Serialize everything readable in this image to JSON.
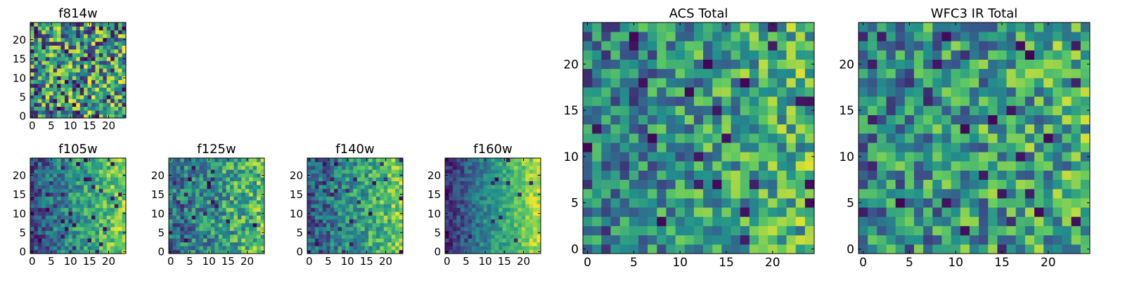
{
  "figure": {
    "colormap": "viridis",
    "colormap_stops": [
      "#440154",
      "#3b528b",
      "#21918c",
      "#5ec962",
      "#fde725"
    ]
  },
  "chart_data": [
    {
      "type": "heatmap",
      "title": "f814w",
      "xlabel": "",
      "ylabel": "",
      "grid_size": 25,
      "xlim": [
        -0.5,
        24.5
      ],
      "ylim": [
        -0.5,
        24.5
      ],
      "xticks": [
        0,
        5,
        10,
        15,
        20
      ],
      "yticks": [
        0,
        5,
        10,
        15,
        20
      ],
      "grid": false,
      "colormap": "viridis",
      "description_of_values": "noisy pixel map, slightly brighter toward the right",
      "seed": 11,
      "pattern": {
        "gradient_x": 0.1,
        "noise": 0.9,
        "dark_fraction": 0.08
      }
    },
    {
      "type": "heatmap",
      "title": "f105w",
      "xlabel": "",
      "ylabel": "",
      "grid_size": 25,
      "xlim": [
        -0.5,
        24.5
      ],
      "ylim": [
        -0.5,
        24.5
      ],
      "xticks": [
        0,
        5,
        10,
        15,
        20
      ],
      "yticks": [
        0,
        5,
        10,
        15,
        20
      ],
      "grid": false,
      "colormap": "viridis",
      "seed": 21,
      "pattern": {
        "gradient_x": 0.55,
        "noise": 0.45,
        "dark_fraction": 0.06
      }
    },
    {
      "type": "heatmap",
      "title": "f125w",
      "xlabel": "",
      "ylabel": "",
      "grid_size": 25,
      "xlim": [
        -0.5,
        24.5
      ],
      "ylim": [
        -0.5,
        24.5
      ],
      "xticks": [
        0,
        5,
        10,
        15,
        20
      ],
      "yticks": [
        0,
        5,
        10,
        15,
        20
      ],
      "grid": false,
      "colormap": "viridis",
      "seed": 31,
      "pattern": {
        "gradient_x": 0.35,
        "noise": 0.55,
        "dark_fraction": 0.03
      }
    },
    {
      "type": "heatmap",
      "title": "f140w",
      "xlabel": "",
      "ylabel": "",
      "grid_size": 25,
      "xlim": [
        -0.5,
        24.5
      ],
      "ylim": [
        -0.5,
        24.5
      ],
      "xticks": [
        0,
        5,
        10,
        15,
        20
      ],
      "yticks": [
        0,
        5,
        10,
        15,
        20
      ],
      "grid": false,
      "colormap": "viridis",
      "seed": 41,
      "pattern": {
        "gradient_x": 0.5,
        "noise": 0.45,
        "dark_fraction": 0.06
      }
    },
    {
      "type": "heatmap",
      "title": "f160w",
      "xlabel": "",
      "ylabel": "",
      "grid_size": 25,
      "xlim": [
        -0.5,
        24.5
      ],
      "ylim": [
        -0.5,
        24.5
      ],
      "xticks": [
        0,
        5,
        10,
        15,
        20
      ],
      "yticks": [
        0,
        5,
        10,
        15,
        20
      ],
      "grid": false,
      "colormap": "viridis",
      "seed": 51,
      "pattern": {
        "gradient_x": 0.75,
        "noise": 0.3,
        "dark_fraction": 0.02
      }
    },
    {
      "type": "heatmap",
      "title": "ACS Total",
      "xlabel": "",
      "ylabel": "",
      "grid_size": 25,
      "xlim": [
        -0.5,
        24.5
      ],
      "ylim": [
        -0.5,
        24.5
      ],
      "xticks": [
        0,
        5,
        10,
        15,
        20
      ],
      "yticks": [
        0,
        5,
        10,
        15,
        20
      ],
      "grid": false,
      "colormap": "viridis",
      "seed": 61,
      "pattern": {
        "gradient_x": 0.25,
        "noise": 0.6,
        "dark_fraction": 0.05
      }
    },
    {
      "type": "heatmap",
      "title": "WFC3 IR Total",
      "xlabel": "",
      "ylabel": "",
      "grid_size": 25,
      "xlim": [
        -0.5,
        24.5
      ],
      "ylim": [
        -0.5,
        24.5
      ],
      "xticks": [
        0,
        5,
        10,
        15,
        20
      ],
      "yticks": [
        0,
        5,
        10,
        15,
        20
      ],
      "grid": false,
      "colormap": "viridis",
      "seed": 71,
      "pattern": {
        "gradient_x": 0.15,
        "noise": 0.65,
        "dark_fraction": 0.05
      }
    }
  ]
}
